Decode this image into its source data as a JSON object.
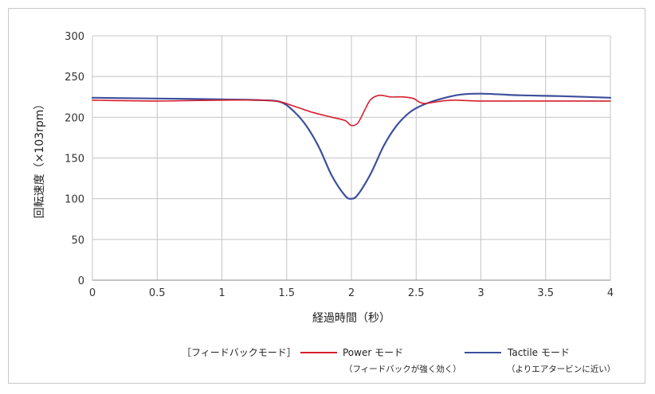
{
  "chart_data": {
    "type": "line",
    "title": "",
    "xlabel": "経過時間（秒）",
    "ylabel": "回転速度（×103rpm）",
    "xlim": [
      0,
      4
    ],
    "ylim": [
      0,
      300
    ],
    "x_ticks": [
      "0",
      "0.5",
      "1",
      "1.5",
      "2",
      "2.5",
      "3",
      "3.5",
      "4"
    ],
    "y_ticks": [
      "0",
      "50",
      "100",
      "150",
      "200",
      "250",
      "300"
    ],
    "grid": true,
    "legend_position": "bottom",
    "legend_title": "［フィードバックモード］",
    "series": [
      {
        "name": "Power モード",
        "note": "（フィードバックが強く効く）",
        "color": "#d81e2c",
        "x": [
          0,
          0.5,
          1,
          1.3,
          1.45,
          1.55,
          1.7,
          1.85,
          1.95,
          2.0,
          2.05,
          2.1,
          2.15,
          2.22,
          2.3,
          2.4,
          2.48,
          2.52,
          2.56,
          2.62,
          2.7,
          2.8,
          3.0,
          3.5,
          4.0
        ],
        "y": [
          221,
          220,
          221,
          221,
          219,
          214,
          206,
          200,
          196,
          190,
          193,
          208,
          222,
          227,
          225,
          225,
          223,
          219,
          217,
          218,
          220,
          221,
          220,
          220,
          220
        ]
      },
      {
        "name": "Tactile モード",
        "note": "（よりエアタービンに近い）",
        "color": "#3d4f9c",
        "x": [
          0,
          0.5,
          1,
          1.3,
          1.45,
          1.55,
          1.65,
          1.75,
          1.85,
          1.95,
          2.0,
          2.05,
          2.15,
          2.25,
          2.35,
          2.45,
          2.55,
          2.7,
          2.85,
          3.0,
          3.3,
          3.6,
          4.0
        ],
        "y": [
          224,
          223,
          222,
          221,
          219,
          208,
          190,
          163,
          128,
          104,
          100,
          105,
          131,
          165,
          190,
          206,
          215,
          223,
          228,
          229,
          227,
          226,
          224
        ]
      }
    ]
  }
}
